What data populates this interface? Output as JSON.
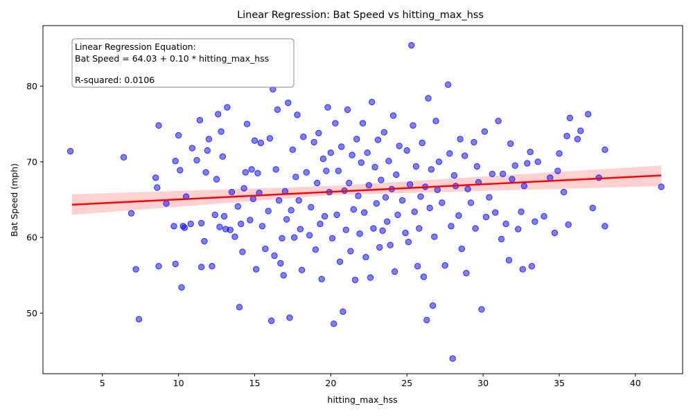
{
  "chart_data": {
    "type": "scatter",
    "title": "Linear Regression: Bat Speed vs hitting_max_hss",
    "xlabel": "hitting_max_hss",
    "ylabel": "Bat Speed (mph)",
    "xlim": [
      1.1,
      43.1
    ],
    "ylim": [
      42,
      88
    ],
    "xticks": [
      "5",
      "10",
      "15",
      "20",
      "25",
      "30",
      "35",
      "40"
    ],
    "xtick_values": [
      5,
      10,
      15,
      20,
      25,
      30,
      35,
      40
    ],
    "yticks": [
      "50",
      "60",
      "70",
      "80"
    ],
    "ytick_values": [
      50,
      60,
      70,
      80
    ],
    "grid": false,
    "annotation": {
      "line1": "Linear Regression Equation:",
      "line2": "Bat Speed = 64.03 + 0.10 * hitting_max_hss",
      "line3": "R-squared: 0.0106"
    },
    "regression": {
      "intercept": 64.03,
      "slope": 0.1,
      "x_range": [
        3.0,
        41.7
      ],
      "ci_low": [
        [
          3.0,
          63.0
        ],
        [
          20.0,
          65.6
        ],
        [
          41.7,
          66.8
        ]
      ],
      "ci_high": [
        [
          3.0,
          65.7
        ],
        [
          20.0,
          66.8
        ],
        [
          41.7,
          69.5
        ]
      ],
      "line_color": "#ff0000",
      "band_color": "#ffb3b3"
    },
    "series": [
      {
        "point_color": "#0000ff",
        "points": [
          [
            2.9,
            71.4
          ],
          [
            6.4,
            70.6
          ],
          [
            6.9,
            63.2
          ],
          [
            7.2,
            55.8
          ],
          [
            7.4,
            49.2
          ],
          [
            8.5,
            67.9
          ],
          [
            8.6,
            66.6
          ],
          [
            8.7,
            56.2
          ],
          [
            8.7,
            74.8
          ],
          [
            9.2,
            64.5
          ],
          [
            9.7,
            61.5
          ],
          [
            9.8,
            56.5
          ],
          [
            9.8,
            70.1
          ],
          [
            10.0,
            73.5
          ],
          [
            10.1,
            68.9
          ],
          [
            10.2,
            53.4
          ],
          [
            10.3,
            61.5
          ],
          [
            10.4,
            61.3
          ],
          [
            10.5,
            65.4
          ],
          [
            10.8,
            61.8
          ],
          [
            10.9,
            71.8
          ],
          [
            11.2,
            70.2
          ],
          [
            11.4,
            75.5
          ],
          [
            11.5,
            61.9
          ],
          [
            11.5,
            56.1
          ],
          [
            11.7,
            59.5
          ],
          [
            11.8,
            68.6
          ],
          [
            11.9,
            71.5
          ],
          [
            12.0,
            73.0
          ],
          [
            12.2,
            56.2
          ],
          [
            12.4,
            63.0
          ],
          [
            12.5,
            67.7
          ],
          [
            12.6,
            76.3
          ],
          [
            12.7,
            61.4
          ],
          [
            12.8,
            74.0
          ],
          [
            12.9,
            70.7
          ],
          [
            13.0,
            62.8
          ],
          [
            13.1,
            61.1
          ],
          [
            13.2,
            77.2
          ],
          [
            13.4,
            61.0
          ],
          [
            13.5,
            66.0
          ],
          [
            13.7,
            60.1
          ],
          [
            13.9,
            64.1
          ],
          [
            14.0,
            50.8
          ],
          [
            14.1,
            61.8
          ],
          [
            14.2,
            58.1
          ],
          [
            14.3,
            66.5
          ],
          [
            14.4,
            68.6
          ],
          [
            14.5,
            75.0
          ],
          [
            14.7,
            62.3
          ],
          [
            14.8,
            69.0
          ],
          [
            14.9,
            65.1
          ],
          [
            15.0,
            72.8
          ],
          [
            15.1,
            55.8
          ],
          [
            15.2,
            68.5
          ],
          [
            15.3,
            65.9
          ],
          [
            15.4,
            72.5
          ],
          [
            15.5,
            61.5
          ],
          [
            15.7,
            58.5
          ],
          [
            15.9,
            63.5
          ],
          [
            16.0,
            73.1
          ],
          [
            16.1,
            49.0
          ],
          [
            16.2,
            79.6
          ],
          [
            16.3,
            57.6
          ],
          [
            16.4,
            69.0
          ],
          [
            16.5,
            76.9
          ],
          [
            16.6,
            64.9
          ],
          [
            16.7,
            56.6
          ],
          [
            16.8,
            59.9
          ],
          [
            16.9,
            55.0
          ],
          [
            17.0,
            66.1
          ],
          [
            17.1,
            62.4
          ],
          [
            17.2,
            77.8
          ],
          [
            17.3,
            49.4
          ],
          [
            17.4,
            63.6
          ],
          [
            17.5,
            71.6
          ],
          [
            17.6,
            60.0
          ],
          [
            17.7,
            68.0
          ],
          [
            17.8,
            76.2
          ],
          [
            17.9,
            64.9
          ],
          [
            18.0,
            61.1
          ],
          [
            18.1,
            55.7
          ],
          [
            18.2,
            73.3
          ],
          [
            18.4,
            68.6
          ],
          [
            18.6,
            60.3
          ],
          [
            18.7,
            64.0
          ],
          [
            18.9,
            72.6
          ],
          [
            19.0,
            58.4
          ],
          [
            19.1,
            67.2
          ],
          [
            19.2,
            73.8
          ],
          [
            19.3,
            61.8
          ],
          [
            19.4,
            54.5
          ],
          [
            19.5,
            70.4
          ],
          [
            19.6,
            62.8
          ],
          [
            19.7,
            68.8
          ],
          [
            19.8,
            77.2
          ],
          [
            19.9,
            66.0
          ],
          [
            20.0,
            71.2
          ],
          [
            20.1,
            59.9
          ],
          [
            20.2,
            48.6
          ],
          [
            20.3,
            75.1
          ],
          [
            20.4,
            63.0
          ],
          [
            20.5,
            68.8
          ],
          [
            20.6,
            56.8
          ],
          [
            20.7,
            72.0
          ],
          [
            20.8,
            50.2
          ],
          [
            20.9,
            66.2
          ],
          [
            21.0,
            61.0
          ],
          [
            21.1,
            76.9
          ],
          [
            21.2,
            67.2
          ],
          [
            21.3,
            58.2
          ],
          [
            21.4,
            70.9
          ],
          [
            21.5,
            63.7
          ],
          [
            21.6,
            54.4
          ],
          [
            21.7,
            73.0
          ],
          [
            21.8,
            65.5
          ],
          [
            21.9,
            60.5
          ],
          [
            22.0,
            69.9
          ],
          [
            22.1,
            75.1
          ],
          [
            22.2,
            63.3
          ],
          [
            22.3,
            57.4
          ],
          [
            22.4,
            71.2
          ],
          [
            22.5,
            66.9
          ],
          [
            22.6,
            54.7
          ],
          [
            22.7,
            77.9
          ],
          [
            22.8,
            61.2
          ],
          [
            22.9,
            69.3
          ],
          [
            23.0,
            64.5
          ],
          [
            23.1,
            72.9
          ],
          [
            23.2,
            58.7
          ],
          [
            23.3,
            67.6
          ],
          [
            23.4,
            60.9
          ],
          [
            23.5,
            73.9
          ],
          [
            23.6,
            65.3
          ],
          [
            23.7,
            62.1
          ],
          [
            23.8,
            70.1
          ],
          [
            23.9,
            59.0
          ],
          [
            24.0,
            66.4
          ],
          [
            24.1,
            76.1
          ],
          [
            24.2,
            55.5
          ],
          [
            24.3,
            68.3
          ],
          [
            24.4,
            63.0
          ],
          [
            24.5,
            72.1
          ],
          [
            24.7,
            64.9
          ],
          [
            24.9,
            60.6
          ],
          [
            25.0,
            71.5
          ],
          [
            25.1,
            59.4
          ],
          [
            25.2,
            67.0
          ],
          [
            25.3,
            85.4
          ],
          [
            25.4,
            74.8
          ],
          [
            25.5,
            63.4
          ],
          [
            25.6,
            69.4
          ],
          [
            25.7,
            56.2
          ],
          [
            25.8,
            61.2
          ],
          [
            25.9,
            65.4
          ],
          [
            26.0,
            72.5
          ],
          [
            26.1,
            54.8
          ],
          [
            26.2,
            66.7
          ],
          [
            26.3,
            49.1
          ],
          [
            26.4,
            78.4
          ],
          [
            26.5,
            63.9
          ],
          [
            26.6,
            69.0
          ],
          [
            26.7,
            51.0
          ],
          [
            26.8,
            60.1
          ],
          [
            26.9,
            75.4
          ],
          [
            27.0,
            66.3
          ],
          [
            27.1,
            70.0
          ],
          [
            27.3,
            64.6
          ],
          [
            27.5,
            56.3
          ],
          [
            27.7,
            80.2
          ],
          [
            27.8,
            71.1
          ],
          [
            27.9,
            61.5
          ],
          [
            28.0,
            44.0
          ],
          [
            28.1,
            68.2
          ],
          [
            28.2,
            66.8
          ],
          [
            28.4,
            62.9
          ],
          [
            28.5,
            73.0
          ],
          [
            28.6,
            58.5
          ],
          [
            28.8,
            70.8
          ],
          [
            28.9,
            55.3
          ],
          [
            29.0,
            66.4
          ],
          [
            29.2,
            64.6
          ],
          [
            29.4,
            72.6
          ],
          [
            29.5,
            61.2
          ],
          [
            29.6,
            69.4
          ],
          [
            29.7,
            67.3
          ],
          [
            29.9,
            50.5
          ],
          [
            30.1,
            74.0
          ],
          [
            30.2,
            62.7
          ],
          [
            30.4,
            65.3
          ],
          [
            30.6,
            68.4
          ],
          [
            30.8,
            63.3
          ],
          [
            31.0,
            75.4
          ],
          [
            31.2,
            59.8
          ],
          [
            31.3,
            68.4
          ],
          [
            31.5,
            61.8
          ],
          [
            31.7,
            57.0
          ],
          [
            31.8,
            72.4
          ],
          [
            31.9,
            67.7
          ],
          [
            32.1,
            69.5
          ],
          [
            32.3,
            61.1
          ],
          [
            32.5,
            63.4
          ],
          [
            32.6,
            55.8
          ],
          [
            32.7,
            66.8
          ],
          [
            32.9,
            69.8
          ],
          [
            33.1,
            71.3
          ],
          [
            33.2,
            56.2
          ],
          [
            33.4,
            62.1
          ],
          [
            33.6,
            70.0
          ],
          [
            34.0,
            62.8
          ],
          [
            34.4,
            67.9
          ],
          [
            34.7,
            60.6
          ],
          [
            34.9,
            68.8
          ],
          [
            35.0,
            71.1
          ],
          [
            35.3,
            66.0
          ],
          [
            35.5,
            73.4
          ],
          [
            35.6,
            61.7
          ],
          [
            35.7,
            75.8
          ],
          [
            36.2,
            73.0
          ],
          [
            36.4,
            74.1
          ],
          [
            36.9,
            76.3
          ],
          [
            37.2,
            63.9
          ],
          [
            37.6,
            67.9
          ],
          [
            38.0,
            61.5
          ],
          [
            38.0,
            71.6
          ],
          [
            41.7,
            66.7
          ]
        ]
      }
    ]
  }
}
